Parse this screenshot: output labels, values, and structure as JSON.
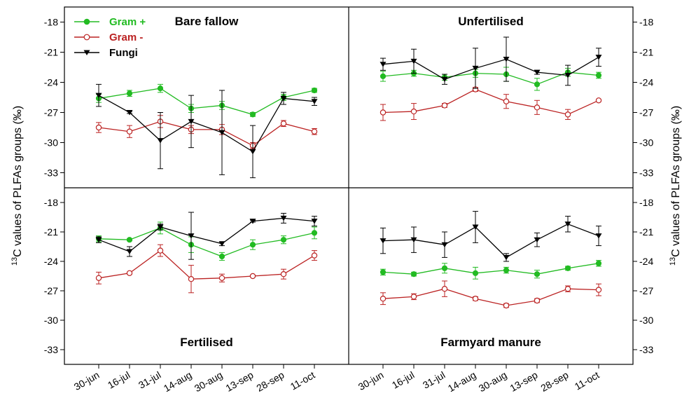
{
  "chart_data": {
    "type": "line",
    "ylabel": "13C values of PLFAs groups (‰)",
    "ylabel_parts": {
      "sup": "13",
      "rest": "C values of PLFAs groups (‰)"
    },
    "categories": [
      "30-jun",
      "16-jul",
      "31-jul",
      "14-aug",
      "30-aug",
      "13-sep",
      "28-sep",
      "11-oct"
    ],
    "ylim": [
      -34.5,
      -16.5
    ],
    "yticks": [
      "-18",
      "-21",
      "-24",
      "-27",
      "-30",
      "-33"
    ],
    "ytick_values": [
      -18,
      -21,
      -24,
      -27,
      -30,
      -33
    ],
    "grid": false,
    "legend": {
      "placement": "top-left",
      "entries": [
        {
          "name": "Gram +",
          "color": "#22bb22",
          "marker": "filled-circle"
        },
        {
          "name": "Gram -",
          "color": "#bb2222",
          "marker": "open-circle"
        },
        {
          "name": "Fungi",
          "color": "#000000",
          "marker": "filled-triangle-down"
        }
      ]
    },
    "panels": [
      {
        "title": "Bare fallow",
        "title_position": "top",
        "series": [
          {
            "name": "Gram +",
            "values": [
              -25.6,
              -25.1,
              -24.6,
              -26.6,
              -26.3,
              -27.2,
              -25.5,
              -24.8
            ],
            "errors": [
              0.4,
              0.3,
              0.4,
              0.4,
              0.4,
              0.2,
              0.3,
              0.2
            ]
          },
          {
            "name": "Gram -",
            "values": [
              -28.5,
              -28.9,
              -27.9,
              -28.7,
              -28.7,
              -30.3,
              -28.1,
              -28.9
            ],
            "errors": [
              0.5,
              0.6,
              0.6,
              0.4,
              0.5,
              0.3,
              0.3,
              0.3
            ]
          },
          {
            "name": "Fungi",
            "values": [
              -25.3,
              -27.0,
              -29.8,
              -27.9,
              -29.0,
              -30.9,
              -25.6,
              -25.9
            ],
            "errors": [
              1.1,
              0.1,
              2.8,
              2.6,
              4.2,
              2.6,
              0.6,
              0.4
            ]
          }
        ]
      },
      {
        "title": "Unfertilised",
        "title_position": "top",
        "series": [
          {
            "name": "Gram +",
            "values": [
              -23.4,
              -23.1,
              -23.5,
              -23.1,
              -23.2,
              -24.2,
              -23.0,
              -23.3
            ],
            "errors": [
              0.5,
              0.3,
              0.3,
              0.4,
              0.7,
              0.6,
              0.4,
              0.3
            ]
          },
          {
            "name": "Gram -",
            "values": [
              -27.0,
              -26.9,
              -26.3,
              -24.7,
              -25.9,
              -26.5,
              -27.2,
              -25.8
            ],
            "errors": [
              0.8,
              0.8,
              0.2,
              0.2,
              0.7,
              0.7,
              0.5,
              0.1
            ]
          },
          {
            "name": "Fungi",
            "values": [
              -22.2,
              -21.9,
              -23.7,
              -22.6,
              -21.7,
              -23.0,
              -23.3,
              -21.5
            ],
            "errors": [
              0.6,
              1.2,
              0.5,
              2.0,
              2.2,
              0.2,
              1.0,
              0.9
            ]
          }
        ]
      },
      {
        "title": "Fertilised",
        "title_position": "bottom",
        "series": [
          {
            "name": "Gram +",
            "values": [
              -21.7,
              -21.8,
              -20.6,
              -22.3,
              -23.5,
              -22.3,
              -21.8,
              -21.1
            ],
            "errors": [
              0.3,
              0.1,
              0.6,
              0.8,
              0.4,
              0.5,
              0.4,
              0.6
            ]
          },
          {
            "name": "Gram -",
            "values": [
              -25.7,
              -25.2,
              -22.9,
              -25.8,
              -25.7,
              -25.5,
              -25.3,
              -23.4
            ],
            "errors": [
              0.6,
              0.1,
              0.6,
              1.4,
              0.4,
              0.1,
              0.5,
              0.5
            ]
          },
          {
            "name": "Fungi",
            "values": [
              -21.8,
              -23.0,
              -20.5,
              -21.4,
              -22.2,
              -19.9,
              -19.6,
              -19.9
            ],
            "errors": [
              0.3,
              0.5,
              0.3,
              2.4,
              0.2,
              0.1,
              0.5,
              0.5
            ]
          }
        ]
      },
      {
        "title": "Farmyard manure",
        "title_position": "bottom",
        "series": [
          {
            "name": "Gram +",
            "values": [
              -25.1,
              -25.3,
              -24.7,
              -25.2,
              -24.9,
              -25.3,
              -24.7,
              -24.2
            ],
            "errors": [
              0.3,
              0.2,
              0.5,
              0.6,
              0.3,
              0.4,
              0.2,
              0.3
            ]
          },
          {
            "name": "Gram -",
            "values": [
              -27.8,
              -27.6,
              -26.8,
              -27.8,
              -28.5,
              -28.0,
              -26.8,
              -26.9
            ],
            "errors": [
              0.6,
              0.3,
              0.8,
              0.2,
              0.2,
              0.2,
              0.3,
              0.6
            ]
          },
          {
            "name": "Fungi",
            "values": [
              -21.9,
              -21.8,
              -22.3,
              -20.5,
              -23.6,
              -21.8,
              -20.2,
              -21.4
            ],
            "errors": [
              1.3,
              1.3,
              1.3,
              1.6,
              0.4,
              0.7,
              0.8,
              1.0
            ]
          }
        ]
      }
    ]
  }
}
